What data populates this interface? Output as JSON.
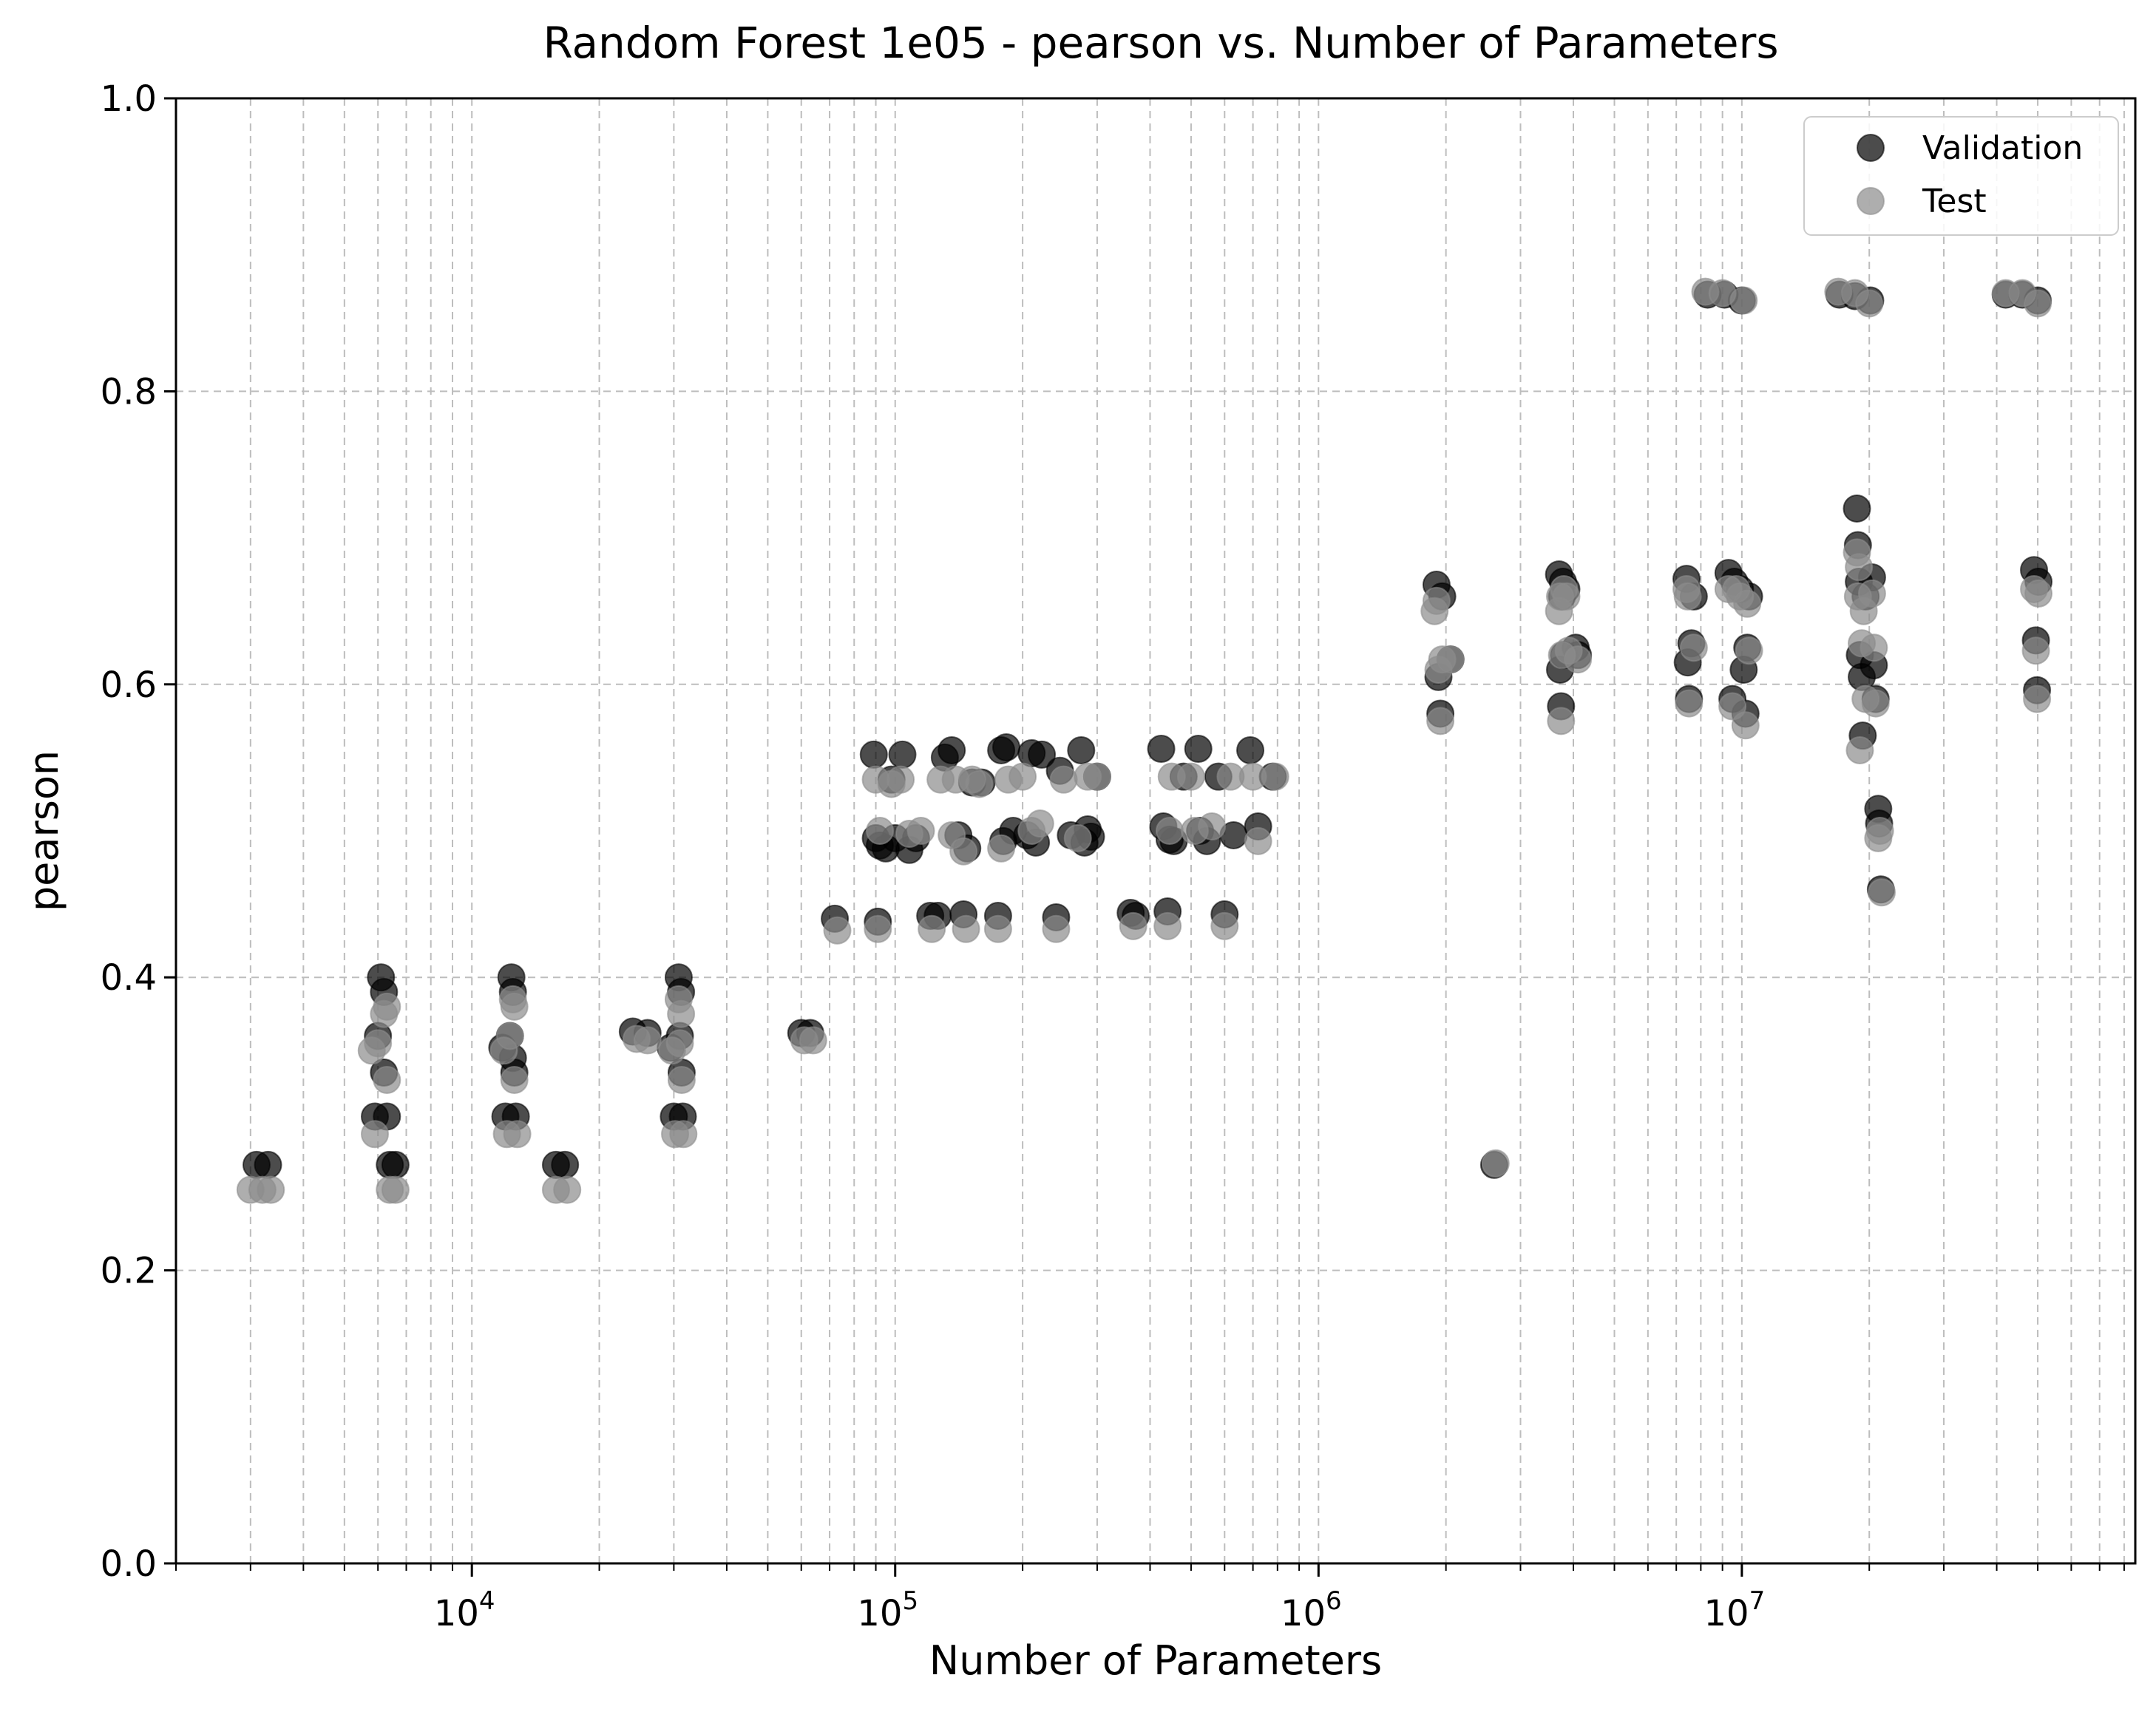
{
  "chart_data": {
    "type": "scatter",
    "title": "Random Forest 1e05 - pearson vs. Number of Parameters",
    "xlabel": "Number of Parameters",
    "ylabel": "pearson",
    "xscale": "log",
    "xlim": [
      2000,
      85000000
    ],
    "ylim": [
      0,
      1.0
    ],
    "yticks": [
      "0.0",
      "0.2",
      "0.4",
      "0.6",
      "0.8",
      "1.0"
    ],
    "xticks": [
      {
        "base": "10",
        "exp": "4",
        "value": 10000
      },
      {
        "base": "10",
        "exp": "5",
        "value": 100000
      },
      {
        "base": "10",
        "exp": "6",
        "value": 1000000
      },
      {
        "base": "10",
        "exp": "7",
        "value": 10000000
      }
    ],
    "grid": true,
    "legend_position": "top-right",
    "colors": {
      "validation": "#000000",
      "test": "#8c8c8c"
    },
    "series": [
      {
        "name": "Validation",
        "points": [
          [
            3100,
            0.272
          ],
          [
            3300,
            0.272
          ],
          [
            5900,
            0.305
          ],
          [
            6000,
            0.36
          ],
          [
            6100,
            0.4
          ],
          [
            6200,
            0.39
          ],
          [
            6200,
            0.335
          ],
          [
            6300,
            0.305
          ],
          [
            6400,
            0.272
          ],
          [
            6600,
            0.272
          ],
          [
            11800,
            0.352
          ],
          [
            12000,
            0.305
          ],
          [
            12300,
            0.36
          ],
          [
            12400,
            0.4
          ],
          [
            12500,
            0.39
          ],
          [
            12500,
            0.345
          ],
          [
            12600,
            0.335
          ],
          [
            12700,
            0.305
          ],
          [
            15800,
            0.272
          ],
          [
            16600,
            0.272
          ],
          [
            24000,
            0.363
          ],
          [
            26000,
            0.362
          ],
          [
            29500,
            0.352
          ],
          [
            30000,
            0.305
          ],
          [
            30800,
            0.4
          ],
          [
            31000,
            0.36
          ],
          [
            31200,
            0.39
          ],
          [
            31300,
            0.335
          ],
          [
            31500,
            0.305
          ],
          [
            60000,
            0.362
          ],
          [
            63000,
            0.362
          ],
          [
            72000,
            0.44
          ],
          [
            89000,
            0.552
          ],
          [
            90000,
            0.495
          ],
          [
            91000,
            0.438
          ],
          [
            92000,
            0.49
          ],
          [
            95000,
            0.488
          ],
          [
            98000,
            0.535
          ],
          [
            100000,
            0.495
          ],
          [
            104000,
            0.552
          ],
          [
            108000,
            0.487
          ],
          [
            112000,
            0.495
          ],
          [
            121000,
            0.442
          ],
          [
            126000,
            0.442
          ],
          [
            131000,
            0.55
          ],
          [
            136000,
            0.555
          ],
          [
            141000,
            0.497
          ],
          [
            145000,
            0.443
          ],
          [
            148000,
            0.488
          ],
          [
            152000,
            0.533
          ],
          [
            160000,
            0.533
          ],
          [
            175000,
            0.442
          ],
          [
            178000,
            0.555
          ],
          [
            180000,
            0.493
          ],
          [
            183000,
            0.557
          ],
          [
            190000,
            0.5
          ],
          [
            205000,
            0.497
          ],
          [
            210000,
            0.553
          ],
          [
            215000,
            0.492
          ],
          [
            222000,
            0.552
          ],
          [
            240000,
            0.441
          ],
          [
            245000,
            0.541
          ],
          [
            260000,
            0.497
          ],
          [
            275000,
            0.555
          ],
          [
            280000,
            0.492
          ],
          [
            285000,
            0.501
          ],
          [
            290000,
            0.496
          ],
          [
            300000,
            0.537
          ],
          [
            360000,
            0.444
          ],
          [
            370000,
            0.442
          ],
          [
            425000,
            0.556
          ],
          [
            430000,
            0.503
          ],
          [
            440000,
            0.445
          ],
          [
            445000,
            0.494
          ],
          [
            455000,
            0.493
          ],
          [
            480000,
            0.537
          ],
          [
            520000,
            0.556
          ],
          [
            525000,
            0.5
          ],
          [
            545000,
            0.493
          ],
          [
            580000,
            0.537
          ],
          [
            600000,
            0.443
          ],
          [
            630000,
            0.497
          ],
          [
            690000,
            0.555
          ],
          [
            720000,
            0.503
          ],
          [
            780000,
            0.537
          ],
          [
            1900000,
            0.668
          ],
          [
            1920000,
            0.605
          ],
          [
            1940000,
            0.58
          ],
          [
            1960000,
            0.66
          ],
          [
            2050000,
            0.617
          ],
          [
            2600000,
            0.272
          ],
          [
            3700000,
            0.675
          ],
          [
            3720000,
            0.61
          ],
          [
            3740000,
            0.585
          ],
          [
            3760000,
            0.66
          ],
          [
            3780000,
            0.67
          ],
          [
            3800000,
            0.62
          ],
          [
            3850000,
            0.665
          ],
          [
            4050000,
            0.625
          ],
          [
            4100000,
            0.62
          ],
          [
            7400000,
            0.672
          ],
          [
            7450000,
            0.615
          ],
          [
            7500000,
            0.59
          ],
          [
            7600000,
            0.628
          ],
          [
            7700000,
            0.66
          ],
          [
            8300000,
            0.866
          ],
          [
            9100000,
            0.866
          ],
          [
            9300000,
            0.676
          ],
          [
            9500000,
            0.59
          ],
          [
            9600000,
            0.67
          ],
          [
            9900000,
            0.665
          ],
          [
            10000000,
            0.862
          ],
          [
            10100000,
            0.61
          ],
          [
            10200000,
            0.58
          ],
          [
            10300000,
            0.625
          ],
          [
            10400000,
            0.66
          ],
          [
            17000000,
            0.866
          ],
          [
            18500000,
            0.865
          ],
          [
            18700000,
            0.72
          ],
          [
            18800000,
            0.695
          ],
          [
            18900000,
            0.67
          ],
          [
            19000000,
            0.62
          ],
          [
            19200000,
            0.605
          ],
          [
            19300000,
            0.565
          ],
          [
            19600000,
            0.66
          ],
          [
            20100000,
            0.862
          ],
          [
            20300000,
            0.673
          ],
          [
            20500000,
            0.613
          ],
          [
            20700000,
            0.59
          ],
          [
            21000000,
            0.515
          ],
          [
            21100000,
            0.505
          ],
          [
            21300000,
            0.46
          ],
          [
            42000000,
            0.866
          ],
          [
            46000000,
            0.866
          ],
          [
            49000000,
            0.678
          ],
          [
            49500000,
            0.63
          ],
          [
            49800000,
            0.596
          ],
          [
            50000000,
            0.862
          ],
          [
            50200000,
            0.67
          ]
        ]
      },
      {
        "name": "Test",
        "points": [
          [
            3000,
            0.255
          ],
          [
            3200,
            0.255
          ],
          [
            3350,
            0.255
          ],
          [
            5800,
            0.35
          ],
          [
            5900,
            0.293
          ],
          [
            6000,
            0.355
          ],
          [
            6200,
            0.375
          ],
          [
            6300,
            0.38
          ],
          [
            6300,
            0.33
          ],
          [
            6400,
            0.255
          ],
          [
            6600,
            0.255
          ],
          [
            11900,
            0.35
          ],
          [
            12100,
            0.293
          ],
          [
            12300,
            0.36
          ],
          [
            12500,
            0.385
          ],
          [
            12600,
            0.38
          ],
          [
            12600,
            0.33
          ],
          [
            12800,
            0.293
          ],
          [
            15800,
            0.255
          ],
          [
            16800,
            0.255
          ],
          [
            24500,
            0.358
          ],
          [
            26000,
            0.357
          ],
          [
            29700,
            0.35
          ],
          [
            30200,
            0.293
          ],
          [
            30800,
            0.385
          ],
          [
            31000,
            0.355
          ],
          [
            31200,
            0.375
          ],
          [
            31300,
            0.33
          ],
          [
            31600,
            0.293
          ],
          [
            61000,
            0.357
          ],
          [
            64000,
            0.357
          ],
          [
            73000,
            0.432
          ],
          [
            90000,
            0.535
          ],
          [
            91000,
            0.433
          ],
          [
            92000,
            0.5
          ],
          [
            98000,
            0.532
          ],
          [
            103000,
            0.535
          ],
          [
            108000,
            0.498
          ],
          [
            115000,
            0.5
          ],
          [
            122000,
            0.433
          ],
          [
            128000,
            0.535
          ],
          [
            136000,
            0.497
          ],
          [
            139000,
            0.535
          ],
          [
            145000,
            0.486
          ],
          [
            147000,
            0.433
          ],
          [
            152000,
            0.535
          ],
          [
            158000,
            0.532
          ],
          [
            175000,
            0.433
          ],
          [
            178000,
            0.488
          ],
          [
            185000,
            0.535
          ],
          [
            200000,
            0.537
          ],
          [
            210000,
            0.5
          ],
          [
            220000,
            0.505
          ],
          [
            240000,
            0.433
          ],
          [
            250000,
            0.535
          ],
          [
            270000,
            0.495
          ],
          [
            285000,
            0.537
          ],
          [
            300000,
            0.537
          ],
          [
            365000,
            0.435
          ],
          [
            440000,
            0.435
          ],
          [
            445000,
            0.5
          ],
          [
            450000,
            0.537
          ],
          [
            500000,
            0.537
          ],
          [
            510000,
            0.5
          ],
          [
            560000,
            0.503
          ],
          [
            600000,
            0.435
          ],
          [
            620000,
            0.537
          ],
          [
            700000,
            0.537
          ],
          [
            720000,
            0.493
          ],
          [
            790000,
            0.537
          ],
          [
            1880000,
            0.65
          ],
          [
            1900000,
            0.657
          ],
          [
            1920000,
            0.61
          ],
          [
            1940000,
            0.575
          ],
          [
            1960000,
            0.617
          ],
          [
            2050000,
            0.617
          ],
          [
            2620000,
            0.273
          ],
          [
            3700000,
            0.65
          ],
          [
            3720000,
            0.66
          ],
          [
            3740000,
            0.575
          ],
          [
            3760000,
            0.62
          ],
          [
            3800000,
            0.665
          ],
          [
            3850000,
            0.66
          ],
          [
            3900000,
            0.623
          ],
          [
            4100000,
            0.617
          ],
          [
            7400000,
            0.665
          ],
          [
            7450000,
            0.66
          ],
          [
            7500000,
            0.587
          ],
          [
            7700000,
            0.625
          ],
          [
            8200000,
            0.868
          ],
          [
            9000000,
            0.867
          ],
          [
            9300000,
            0.665
          ],
          [
            9500000,
            0.585
          ],
          [
            9700000,
            0.665
          ],
          [
            9900000,
            0.66
          ],
          [
            10100000,
            0.862
          ],
          [
            10200000,
            0.572
          ],
          [
            10300000,
            0.655
          ],
          [
            10400000,
            0.623
          ],
          [
            16900000,
            0.868
          ],
          [
            18500000,
            0.867
          ],
          [
            18700000,
            0.69
          ],
          [
            18800000,
            0.66
          ],
          [
            18900000,
            0.68
          ],
          [
            19000000,
            0.555
          ],
          [
            19200000,
            0.628
          ],
          [
            19400000,
            0.65
          ],
          [
            19600000,
            0.59
          ],
          [
            20000000,
            0.86
          ],
          [
            20300000,
            0.662
          ],
          [
            20500000,
            0.625
          ],
          [
            20700000,
            0.587
          ],
          [
            21000000,
            0.495
          ],
          [
            21200000,
            0.5
          ],
          [
            21400000,
            0.458
          ],
          [
            42000000,
            0.867
          ],
          [
            46000000,
            0.867
          ],
          [
            49000000,
            0.665
          ],
          [
            49500000,
            0.623
          ],
          [
            49800000,
            0.59
          ],
          [
            50000000,
            0.86
          ],
          [
            50200000,
            0.662
          ]
        ]
      }
    ]
  }
}
